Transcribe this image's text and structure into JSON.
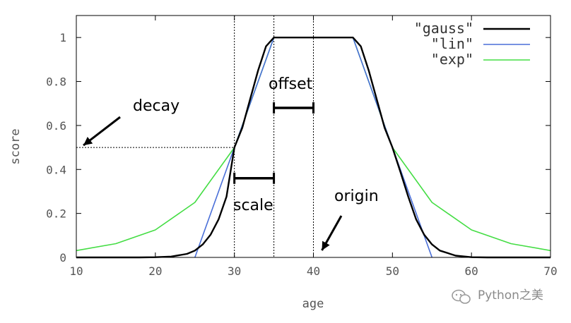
{
  "chart_data": {
    "type": "line",
    "xlabel": "age",
    "ylabel": "score",
    "xlim": [
      10,
      70
    ],
    "ylim": [
      0,
      1.1
    ],
    "x_ticks": [
      10,
      20,
      30,
      40,
      50,
      60,
      70
    ],
    "y_ticks": [
      0,
      0.2,
      0.4,
      0.6,
      0.8,
      1
    ],
    "x_tick_labels": [
      "10",
      "20",
      "30",
      "40",
      "50",
      "60",
      "70"
    ],
    "y_tick_labels": [
      "0",
      "0.2",
      "0.4",
      "0.6",
      "0.8",
      "1"
    ],
    "legend_position": "top-right",
    "series": [
      {
        "name": "\"gauss\"",
        "color": "#000000",
        "x": [
          10,
          14,
          18,
          20,
          22,
          24,
          25,
          26,
          27,
          28,
          29,
          30,
          31,
          32,
          33,
          34,
          35,
          45,
          46,
          47,
          48,
          49,
          50,
          51,
          52,
          53,
          54,
          55,
          56,
          58,
          60,
          62,
          66,
          70
        ],
        "values": [
          0,
          0,
          0,
          0.001,
          0.004,
          0.016,
          0.031,
          0.059,
          0.104,
          0.173,
          0.276,
          0.5,
          0.59,
          0.72,
          0.85,
          0.96,
          1,
          1,
          0.96,
          0.85,
          0.72,
          0.59,
          0.5,
          0.39,
          0.276,
          0.173,
          0.104,
          0.059,
          0.031,
          0.008,
          0.001,
          0,
          0,
          0
        ]
      },
      {
        "name": "\"lin\"",
        "color": "#4a6fd8",
        "x": [
          25,
          35,
          45,
          55
        ],
        "values": [
          0,
          1,
          1,
          0
        ]
      },
      {
        "name": "\"exp\"",
        "color": "#44dd44",
        "x": [
          10,
          15,
          20,
          25,
          30,
          35,
          45,
          50,
          55,
          60,
          65,
          70
        ],
        "values": [
          0.031,
          0.0625,
          0.125,
          0.25,
          0.5,
          1,
          1,
          0.5,
          0.25,
          0.125,
          0.0625,
          0.031
        ]
      }
    ],
    "annotations": [
      {
        "text": "decay",
        "target_x": 10,
        "target_y": 0.5
      },
      {
        "text": "offset",
        "from_x": 35,
        "to_x": 40,
        "y": 0.68
      },
      {
        "text": "scale",
        "from_x": 30,
        "to_x": 35,
        "y": 0.36
      },
      {
        "text": "origin",
        "target_x": 40,
        "target_y": 0.02
      }
    ],
    "reference_lines": {
      "vertical_x": [
        30,
        35,
        40
      ],
      "horizontal_y": 0.5
    }
  },
  "watermark": {
    "text": "Python之美",
    "icon": "wechat-icon"
  }
}
